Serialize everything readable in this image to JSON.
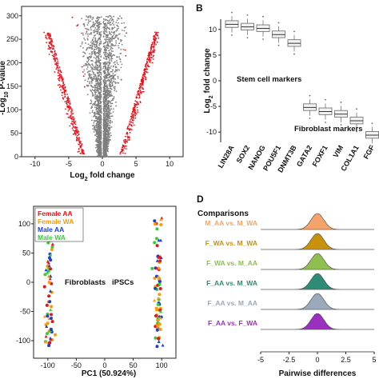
{
  "panels": {
    "A": {
      "type": "scatter",
      "xlabel": "Log2 fold change",
      "ylabel": "-Log10 P-value",
      "xticks": [
        -10,
        -5,
        0,
        5,
        10
      ],
      "yticks": [
        0,
        50,
        100,
        150,
        200,
        250,
        300
      ],
      "xlim": [
        -12,
        12
      ],
      "ylim": [
        0,
        320
      ],
      "colors": {
        "significant": "#e8141c",
        "not_significant": "#7f7f7f"
      }
    },
    "B": {
      "label": "B",
      "type": "box",
      "ylabel": "Log2 fold change",
      "yticks": [
        -10,
        -5,
        0,
        5,
        10
      ],
      "ylim": [
        -12,
        12
      ],
      "categories": [
        "LIN28A",
        "SOX2",
        "NANOG",
        "POU5F1",
        "DNMT3B",
        "GATA2",
        "FOXF1",
        "VIM",
        "COL1A1",
        "FGF"
      ],
      "medians": [
        11,
        10.5,
        10.2,
        9,
        7.3,
        -5.2,
        -6,
        -6.5,
        -7.8,
        -10.6
      ],
      "annotations": [
        "Stem cell markers",
        "Fibroblast markers"
      ]
    },
    "C": {
      "type": "scatter",
      "xlabel": "PC1 (50.924%)",
      "xticks": [
        -100,
        -50,
        0,
        50,
        100
      ],
      "yticks": [
        -100,
        -50,
        0,
        50,
        100
      ],
      "xlim": [
        -125,
        125
      ],
      "ylim": [
        -130,
        130
      ],
      "legend": [
        "Female AA",
        "Female WA",
        "Male AA",
        "Male WA"
      ],
      "legend_colors": [
        "#e8141c",
        "#ff9900",
        "#1a3fd6",
        "#33cc33"
      ],
      "annotations": [
        "Fibroblasts",
        "iPSCs"
      ]
    },
    "D": {
      "label": "D",
      "type": "ridgeline",
      "title": "Comparisons",
      "xlabel": "Pairwise differences",
      "xticks": [
        "-5",
        "-2.5",
        "0",
        "2.5",
        "5"
      ],
      "xlim": [
        -5,
        5
      ],
      "series": [
        {
          "name": "M_AA vs. M_WA",
          "color": "#f4a46a"
        },
        {
          "name": "F_WA vs. M_WA",
          "color": "#c9920c"
        },
        {
          "name": "F_WA vs. M_AA",
          "color": "#8fc04f"
        },
        {
          "name": "F_AA vs. M_WA",
          "color": "#2e8b76"
        },
        {
          "name": "F_AA vs. M_AA",
          "color": "#9aaabb"
        },
        {
          "name": "F_AA vs. F_WA",
          "color": "#9b30c0"
        }
      ]
    }
  }
}
